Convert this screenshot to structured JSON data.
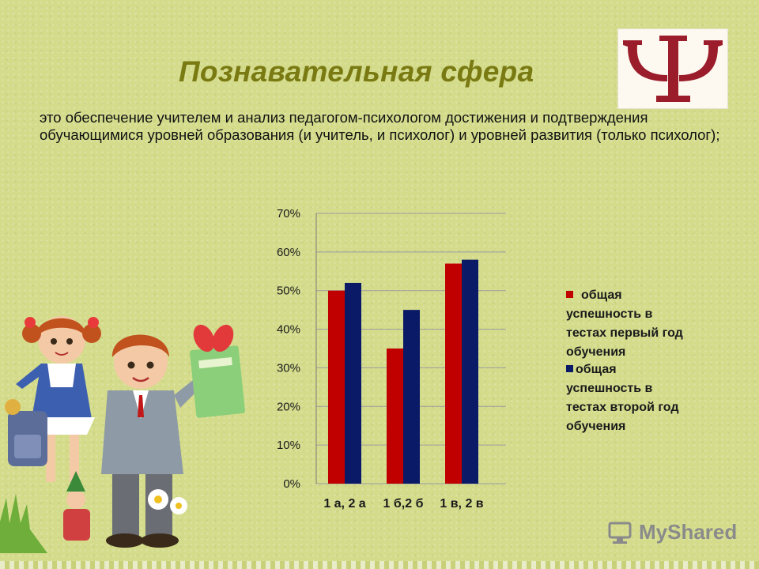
{
  "slide": {
    "title": "Познавательная сфера",
    "description": "это обеспечение учителем и анализ педагогом-психологом достижения и подтверждения обучающимися уровней образования (и учитель, и психолог) и уровней развития  (только психолог);"
  },
  "colors": {
    "title": "#7a7a12",
    "series_red": "#c00000",
    "series_navy": "#0a1a66",
    "psi_symbol": "#9b1c2a"
  },
  "icons": {
    "psi": "psi-symbol-icon",
    "children": "children-illustration",
    "logo": "myshared-logo"
  },
  "logo": {
    "text": "MyShared"
  },
  "chart_data": {
    "type": "bar",
    "categories": [
      "1 а, 2 а",
      "1 б,2 б",
      "1 в, 2 в"
    ],
    "series": [
      {
        "name": "общая успешность в тестах первый год обучения",
        "values": [
          50,
          35,
          57
        ]
      },
      {
        "name": "общая успешность в тестах  второй год обучения",
        "values": [
          52,
          45,
          58
        ]
      }
    ],
    "y_ticks": [
      "0%",
      "10%",
      "20%",
      "30%",
      "40%",
      "50%",
      "60%",
      "70%"
    ],
    "ylim": [
      0,
      70
    ],
    "unit": "%",
    "grid": true,
    "legend": "right",
    "legend_lines": [
      [
        "общая",
        "успешность в",
        "тестах первый год",
        "обучения"
      ],
      [
        "общая",
        "успешность в",
        "тестах  второй год",
        "обучения"
      ]
    ]
  }
}
